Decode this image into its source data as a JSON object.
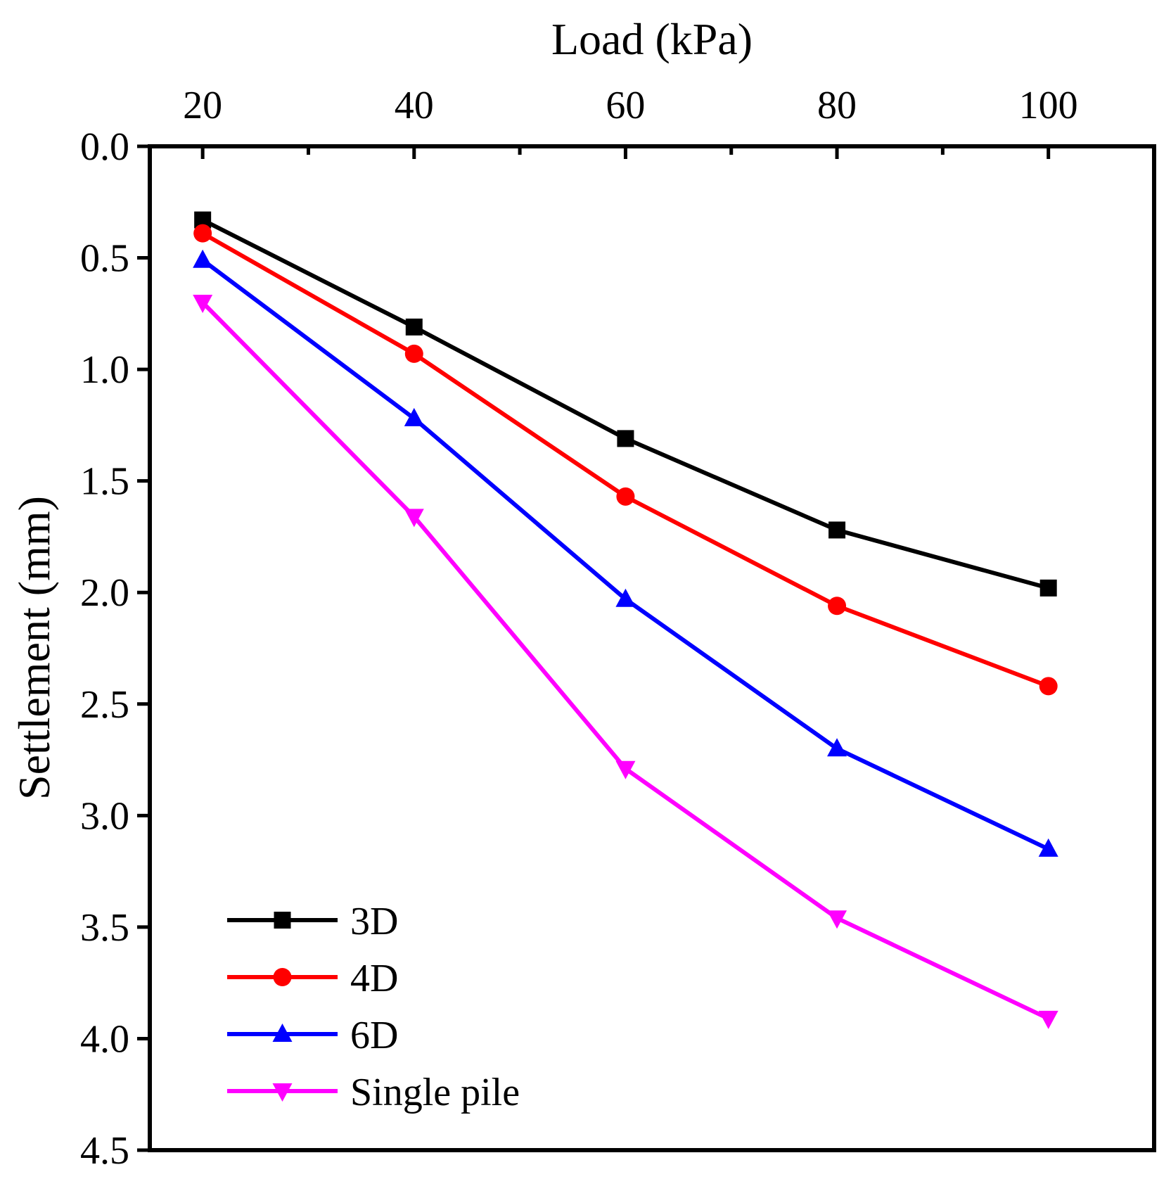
{
  "chart_data": {
    "type": "line",
    "title": "",
    "xlabel": "Load (kPa)",
    "ylabel": "Settlement (mm)",
    "x_axis_position": "top",
    "y_axis_inverted": true,
    "xlim": [
      15,
      110
    ],
    "ylim": [
      0,
      4.5
    ],
    "x": [
      20,
      40,
      60,
      80,
      100
    ],
    "x_ticks": [
      20,
      40,
      60,
      80,
      100
    ],
    "x_tick_labels": [
      "20",
      "40",
      "60",
      "80",
      "100"
    ],
    "x_minor_ticks": [
      30,
      50,
      70,
      90
    ],
    "y_ticks": [
      0,
      0.5,
      1,
      1.5,
      2,
      2.5,
      3,
      3.5,
      4,
      4.5
    ],
    "y_tick_labels": [
      "0.0",
      "0.5",
      "1.0",
      "1.5",
      "2.0",
      "2.5",
      "3.0",
      "3.5",
      "4.0",
      "4.5"
    ],
    "grid": false,
    "legend_position": "bottom-left",
    "series": [
      {
        "name": "3D",
        "color": "#000000",
        "marker": "square",
        "values": [
          0.33,
          0.81,
          1.31,
          1.72,
          1.98
        ]
      },
      {
        "name": "4D",
        "color": "#ff0000",
        "marker": "circle",
        "values": [
          0.39,
          0.93,
          1.57,
          2.06,
          2.42
        ]
      },
      {
        "name": "6D",
        "color": "#0000ff",
        "marker": "triangle-up",
        "values": [
          0.51,
          1.22,
          2.03,
          2.7,
          3.15
        ]
      },
      {
        "name": "Single pile",
        "color": "#ff00ff",
        "marker": "triangle-down",
        "values": [
          0.7,
          1.66,
          2.79,
          3.46,
          3.91
        ]
      }
    ]
  }
}
